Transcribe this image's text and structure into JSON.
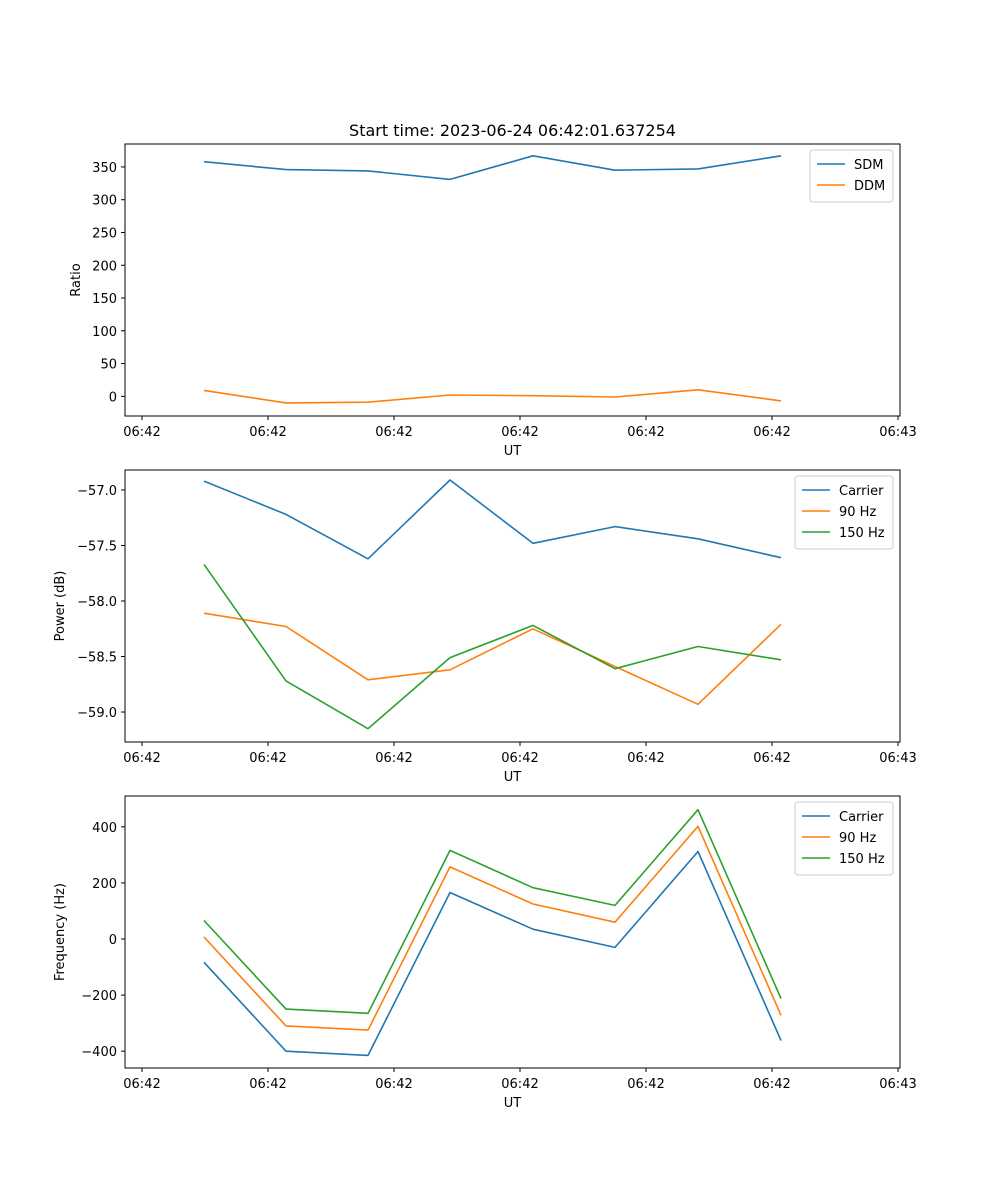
{
  "figure": {
    "title": "Start time: 2023-06-24 06:42:01.637254"
  },
  "chart_data": [
    {
      "type": "line",
      "title": "Start time: 2023-06-24 06:42:01.637254",
      "xlabel": "UT",
      "ylabel": "Ratio",
      "x_tick_labels": [
        "06:42",
        "06:42",
        "06:42",
        "06:42",
        "06:42",
        "06:42",
        "06:43"
      ],
      "y_ticks": [
        0,
        50,
        100,
        150,
        200,
        250,
        300,
        350
      ],
      "ylim": [
        -30,
        385
      ],
      "legend_position": "top-right",
      "series": [
        {
          "name": "SDM",
          "color": "#1f77b4",
          "values": [
            358,
            346,
            344,
            331,
            367,
            345,
            347,
            367
          ]
        },
        {
          "name": "DDM",
          "color": "#ff7f0e",
          "values": [
            9,
            -10,
            -9,
            2,
            1,
            -1,
            10,
            -7
          ]
        }
      ]
    },
    {
      "type": "line",
      "title": "",
      "xlabel": "UT",
      "ylabel": "Power (dB)",
      "x_tick_labels": [
        "06:42",
        "06:42",
        "06:42",
        "06:42",
        "06:42",
        "06:42",
        "06:43"
      ],
      "y_ticks": [
        -59.0,
        -58.5,
        -58.0,
        -57.5,
        -57.0
      ],
      "y_tick_labels": [
        "−59.0",
        "−58.5",
        "−58.0",
        "−57.5",
        "−57.0"
      ],
      "ylim": [
        -59.27,
        -56.82
      ],
      "legend_position": "top-right",
      "series": [
        {
          "name": "Carrier",
          "color": "#1f77b4",
          "values": [
            -56.92,
            -57.22,
            -57.62,
            -56.91,
            -57.48,
            -57.33,
            -57.44,
            -57.61
          ]
        },
        {
          "name": "90 Hz",
          "color": "#ff7f0e",
          "values": [
            -58.11,
            -58.23,
            -58.71,
            -58.62,
            -58.25,
            -58.59,
            -58.93,
            -58.21
          ]
        },
        {
          "name": "150 Hz",
          "color": "#2ca02c",
          "values": [
            -57.67,
            -58.72,
            -59.15,
            -58.51,
            -58.22,
            -58.61,
            -58.41,
            -58.53
          ]
        }
      ]
    },
    {
      "type": "line",
      "title": "",
      "xlabel": "UT",
      "ylabel": "Frequency (Hz)",
      "x_tick_labels": [
        "06:42",
        "06:42",
        "06:42",
        "06:42",
        "06:42",
        "06:42",
        "06:43"
      ],
      "y_ticks": [
        -400,
        -200,
        0,
        200,
        400
      ],
      "y_tick_labels": [
        "−400",
        "−200",
        "0",
        "200",
        "400"
      ],
      "ylim": [
        -460,
        510
      ],
      "legend_position": "top-right",
      "series": [
        {
          "name": "Carrier",
          "color": "#1f77b4",
          "values": [
            -83,
            -400,
            -415,
            166,
            35,
            -30,
            312,
            -362
          ]
        },
        {
          "name": "90 Hz",
          "color": "#ff7f0e",
          "values": [
            7,
            -310,
            -325,
            257,
            125,
            60,
            402,
            -272
          ]
        },
        {
          "name": "150 Hz",
          "color": "#2ca02c",
          "values": [
            66,
            -250,
            -265,
            316,
            183,
            120,
            461,
            -212
          ]
        }
      ]
    }
  ]
}
